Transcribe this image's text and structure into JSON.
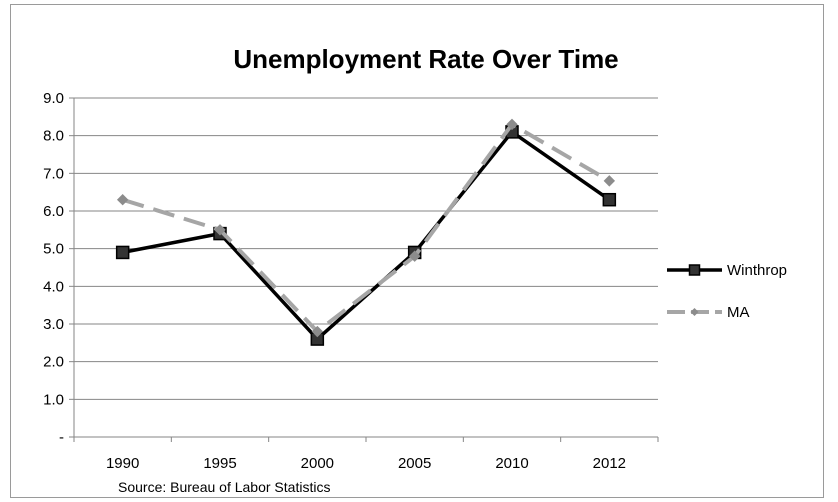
{
  "chart_data": {
    "type": "line",
    "title": "Unemployment Rate Over Time",
    "categories": [
      "1990",
      "1995",
      "2000",
      "2005",
      "2010",
      "2012"
    ],
    "y_tick_labels": [
      "-",
      "1.0",
      "2.0",
      "3.0",
      "4.0",
      "5.0",
      "6.0",
      "7.0",
      "8.0",
      "9.0"
    ],
    "ylim": [
      0,
      9
    ],
    "grid": true,
    "legend_position": "right",
    "series": [
      {
        "name": "Winthrop",
        "values": [
          4.9,
          5.4,
          2.6,
          4.9,
          8.1,
          6.3
        ],
        "color": "#000000",
        "marker": "square"
      },
      {
        "name": "MA",
        "values": [
          6.3,
          5.5,
          2.8,
          4.8,
          8.3,
          6.8
        ],
        "color": "#a6a6a6",
        "marker": "diamond",
        "dashed": true
      }
    ],
    "source_note": "Source: Bureau of Labor Statistics"
  }
}
